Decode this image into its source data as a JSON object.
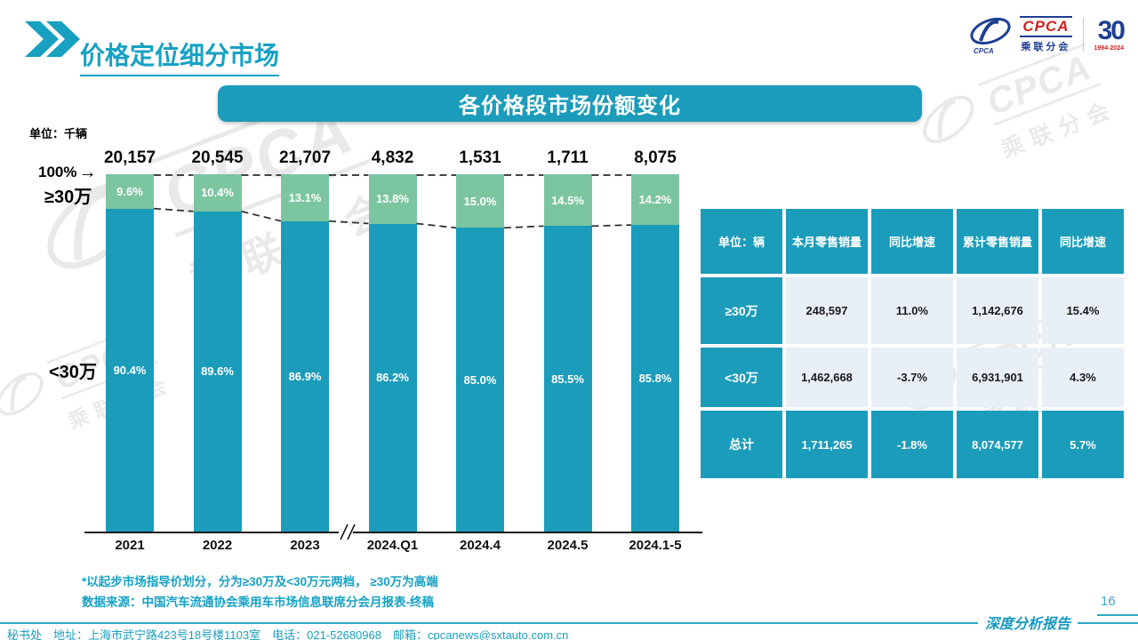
{
  "page": {
    "title": "价格定位细分市场",
    "page_number": "16",
    "report_label": "深度分析报告",
    "footer_text": "秘书处　地址：上海市武宁路423号18号楼1103室　电话：021-52680968　邮箱：cpcanews@sxtauto.com.cn"
  },
  "logo": {
    "cpca": "CPCA",
    "cn": "乘联分会",
    "anniv": "30",
    "years": "1994-2024"
  },
  "watermark": {
    "latin": "CPCA",
    "cn": "乘联分会"
  },
  "chart": {
    "banner_title": "各价格段市场份额变化",
    "unit_label": "单位：千辆",
    "axis_100_label": "100%",
    "arrow": "→",
    "high_band_label": "≥30万",
    "low_band_label": "<30万"
  },
  "chart_data": {
    "type": "bar",
    "subtype": "stacked-percent",
    "title": "各价格段市场份额变化",
    "unit": "千辆",
    "categories": [
      "2021",
      "2022",
      "2023",
      "2024.Q1",
      "2024.4",
      "2024.5",
      "2024.1-5"
    ],
    "totals": [
      20157,
      20545,
      21707,
      4832,
      1531,
      1711,
      8075
    ],
    "totals_display": [
      "20,157",
      "20,545",
      "21,707",
      "4,832",
      "1,531",
      "1,711",
      "8,075"
    ],
    "series": [
      {
        "name": "≥30万",
        "color": "#7cc5a1",
        "values": [
          9.6,
          10.4,
          13.1,
          13.8,
          15.0,
          14.5,
          14.2
        ],
        "labels": [
          "9.6%",
          "10.4%",
          "13.1%",
          "13.8%",
          "15.0%",
          "14.5%",
          "14.2%"
        ]
      },
      {
        "name": "<30万",
        "color": "#1b9cba",
        "values": [
          90.4,
          89.6,
          86.9,
          86.2,
          85.0,
          85.5,
          85.8
        ],
        "labels": [
          "90.4%",
          "89.6%",
          "86.9%",
          "86.2%",
          "85.0%",
          "85.5%",
          "85.8%"
        ]
      }
    ],
    "ylim": [
      0,
      100
    ],
    "y_axis_top_label": "100%",
    "grid": false,
    "legend_position": "left-band-labels",
    "x_axis_break_between": [
      "2023",
      "2024.Q1"
    ]
  },
  "table": {
    "headers": [
      "单位：辆",
      "本月零售销量",
      "同比增速",
      "累计零售销量",
      "同比增速"
    ],
    "rows": [
      {
        "label": "≥30万",
        "cells": [
          "248,597",
          "11.0%",
          "1,142,676",
          "15.4%"
        ],
        "highlight": false
      },
      {
        "label": "<30万",
        "cells": [
          "1,462,668",
          "-3.7%",
          "6,931,901",
          "4.3%"
        ],
        "highlight": false
      },
      {
        "label": "总计",
        "cells": [
          "1,711,265",
          "-1.8%",
          "8,074,577",
          "5.7%"
        ],
        "highlight": true
      }
    ]
  },
  "notes": [
    "*以起步市场指导价划分，分为≥30万及<30万元两档，  ≥30万为高端",
    "数据来源：中国汽车流通协会乘用车市场信息联席分会月报表-终稿"
  ],
  "colors": {
    "teal": "#1b9cba",
    "green": "#7cc5a1",
    "light_cell": "#e9eff6",
    "title_teal": "#16a1c4",
    "logo_blue": "#1d3e92",
    "logo_red": "#cc2222"
  }
}
